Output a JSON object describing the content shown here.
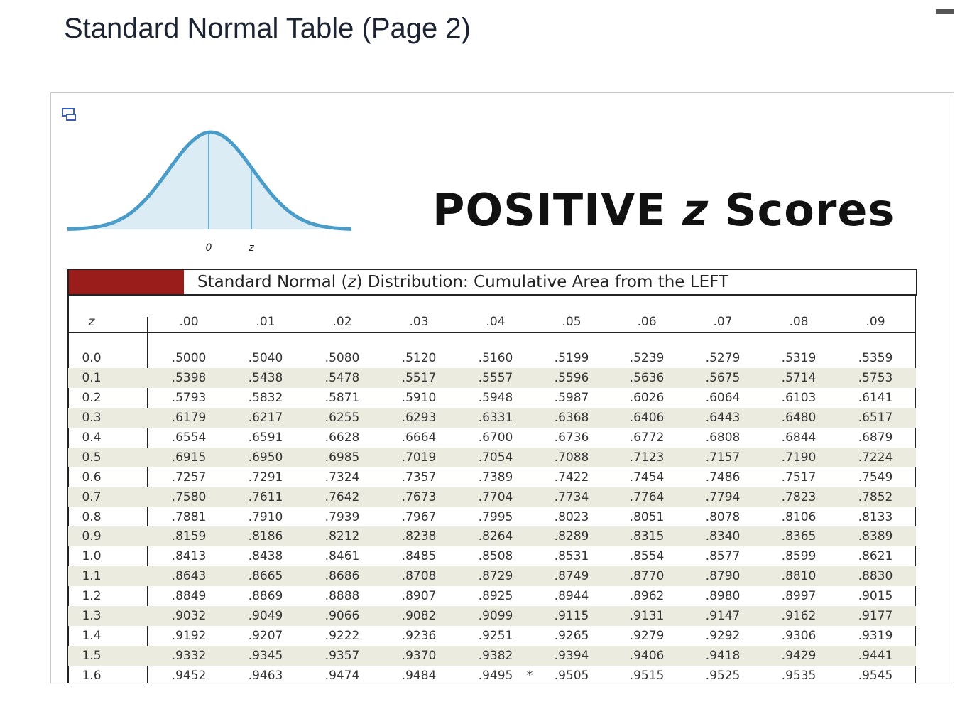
{
  "header": {
    "title": "Standard Normal Table (Page 2)"
  },
  "figure": {
    "curve_labels": [
      "0",
      "z"
    ],
    "heading": [
      "POSITIVE",
      "z",
      "Scores"
    ],
    "caption": [
      "Standard Normal (",
      "z",
      ") Distribution: Cumulative Area from the LEFT"
    ]
  },
  "table": {
    "columns": [
      "z",
      ".00",
      ".01",
      ".02",
      ".03",
      ".04",
      ".05",
      ".06",
      ".07",
      ".08",
      ".09"
    ],
    "rows": [
      [
        "0.0",
        ".5000",
        ".5040",
        ".5080",
        ".5120",
        ".5160",
        ".5199",
        ".5239",
        ".5279",
        ".5319",
        ".5359"
      ],
      [
        "0.1",
        ".5398",
        ".5438",
        ".5478",
        ".5517",
        ".5557",
        ".5596",
        ".5636",
        ".5675",
        ".5714",
        ".5753"
      ],
      [
        "0.2",
        ".5793",
        ".5832",
        ".5871",
        ".5910",
        ".5948",
        ".5987",
        ".6026",
        ".6064",
        ".6103",
        ".6141"
      ],
      [
        "0.3",
        ".6179",
        ".6217",
        ".6255",
        ".6293",
        ".6331",
        ".6368",
        ".6406",
        ".6443",
        ".6480",
        ".6517"
      ],
      [
        "0.4",
        ".6554",
        ".6591",
        ".6628",
        ".6664",
        ".6700",
        ".6736",
        ".6772",
        ".6808",
        ".6844",
        ".6879"
      ],
      [
        "0.5",
        ".6915",
        ".6950",
        ".6985",
        ".7019",
        ".7054",
        ".7088",
        ".7123",
        ".7157",
        ".7190",
        ".7224"
      ],
      [
        "0.6",
        ".7257",
        ".7291",
        ".7324",
        ".7357",
        ".7389",
        ".7422",
        ".7454",
        ".7486",
        ".7517",
        ".7549"
      ],
      [
        "0.7",
        ".7580",
        ".7611",
        ".7642",
        ".7673",
        ".7704",
        ".7734",
        ".7764",
        ".7794",
        ".7823",
        ".7852"
      ],
      [
        "0.8",
        ".7881",
        ".7910",
        ".7939",
        ".7967",
        ".7995",
        ".8023",
        ".8051",
        ".8078",
        ".8106",
        ".8133"
      ],
      [
        "0.9",
        ".8159",
        ".8186",
        ".8212",
        ".8238",
        ".8264",
        ".8289",
        ".8315",
        ".8340",
        ".8365",
        ".8389"
      ],
      [
        "1.0",
        ".8413",
        ".8438",
        ".8461",
        ".8485",
        ".8508",
        ".8531",
        ".8554",
        ".8577",
        ".8599",
        ".8621"
      ],
      [
        "1.1",
        ".8643",
        ".8665",
        ".8686",
        ".8708",
        ".8729",
        ".8749",
        ".8770",
        ".8790",
        ".8810",
        ".8830"
      ],
      [
        "1.2",
        ".8849",
        ".8869",
        ".8888",
        ".8907",
        ".8925",
        ".8944",
        ".8962",
        ".8980",
        ".8997",
        ".9015"
      ],
      [
        "1.3",
        ".9032",
        ".9049",
        ".9066",
        ".9082",
        ".9099",
        ".9115",
        ".9131",
        ".9147",
        ".9162",
        ".9177"
      ],
      [
        "1.4",
        ".9192",
        ".9207",
        ".9222",
        ".9236",
        ".9251",
        ".9265",
        ".9279",
        ".9292",
        ".9306",
        ".9319"
      ],
      [
        "1.5",
        ".9332",
        ".9345",
        ".9357",
        ".9370",
        ".9382",
        ".9394",
        ".9406",
        ".9418",
        ".9429",
        ".9441"
      ],
      [
        "1.6",
        ".9452",
        ".9463",
        ".9474",
        ".9484",
        ".9495",
        ".9505",
        ".9515",
        ".9525",
        ".9535",
        ".9545"
      ]
    ],
    "note_mark": "*"
  }
}
